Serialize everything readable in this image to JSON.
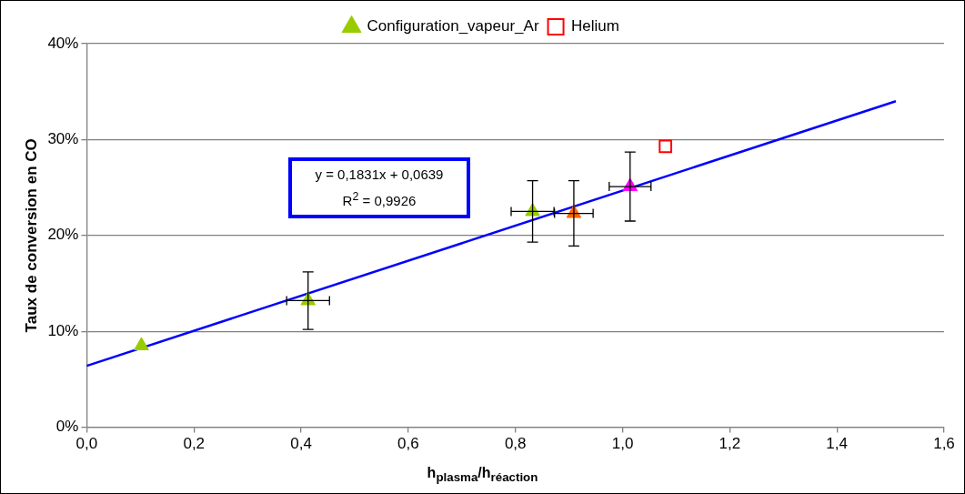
{
  "chart_data": {
    "type": "scatter",
    "xlabel": "h$_{plasma}$/h$_{réaction}$",
    "ylabel": "Taux de conversion en CO",
    "xlim": [
      0,
      1.6
    ],
    "xticks": [
      {
        "value": 0,
        "label": "0,0"
      },
      {
        "value": 0.2,
        "label": "0,2"
      },
      {
        "value": 0.4,
        "label": "0,4"
      },
      {
        "value": 0.6,
        "label": "0,6"
      },
      {
        "value": 0.8,
        "label": "0,8"
      },
      {
        "value": 1,
        "label": "1,0"
      },
      {
        "value": 1.2,
        "label": "1,2"
      },
      {
        "value": 1.4,
        "label": "1,4"
      },
      {
        "value": 1.6,
        "label": "1,6"
      }
    ],
    "ylim": [
      0,
      0.4
    ],
    "yticks": [
      {
        "value": 0,
        "label": "0%"
      },
      {
        "value": 0.1,
        "label": "10%"
      },
      {
        "value": 0.2,
        "label": "20%"
      },
      {
        "value": 0.3,
        "label": "30%"
      },
      {
        "value": 0.4,
        "label": "40%"
      }
    ],
    "grid": "y",
    "legend": "top",
    "annotations": [
      "y = 0,1831x + 0,0639",
      "R$^{2}$ = 0,9926"
    ],
    "series": [
      {
        "name": "Configuration_vapeur_Ar",
        "type": "scatter",
        "marker": "triangle",
        "color": "#99cc00",
        "x": [
          0.102,
          0.413,
          0.832,
          0.909,
          1.014
        ],
        "values": [
          0.085,
          0.132,
          0.225,
          0.223,
          0.251
        ],
        "colors": [
          "#99cc00",
          "#99cc00",
          "#99cc00",
          "#ff6600",
          "#ff00ff"
        ],
        "errors": [
          null,
          0.03,
          0.032,
          0.034,
          0.036
        ],
        "xerrors": [
          null,
          0.04,
          0.04,
          0.036,
          0.039
        ]
      },
      {
        "name": "Helium",
        "type": "scatter",
        "marker": "square",
        "color": "#ff0000",
        "x": [
          1.08
        ],
        "values": [
          0.293
        ]
      },
      {
        "type": "line",
        "color": "#0000ff",
        "marker": "none",
        "x": [
          0,
          1.51
        ],
        "values": [
          0.064,
          0.34
        ]
      }
    ]
  }
}
